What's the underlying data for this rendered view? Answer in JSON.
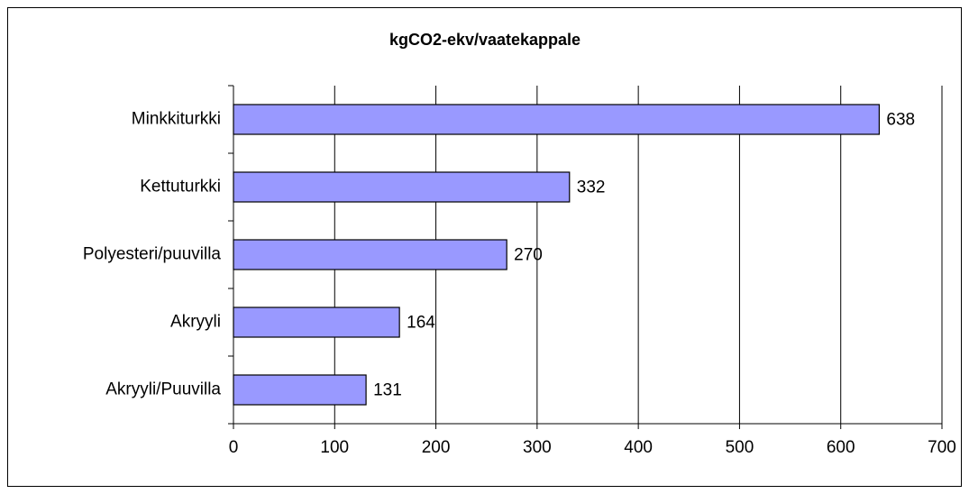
{
  "chart_data": {
    "type": "bar",
    "orientation": "horizontal",
    "title": "kgCO2-ekv/vaatekappale",
    "categories": [
      "Minkkiturkki",
      "Kettuturkki",
      "Polyesteri/puuvilla",
      "Akryyli",
      "Akryyli/Puuvilla"
    ],
    "values": [
      638,
      332,
      270,
      164,
      131
    ],
    "color": "#9999ff",
    "xlim": [
      0,
      700
    ],
    "xticks": [
      0,
      100,
      200,
      300,
      400,
      500,
      600,
      700
    ],
    "grid": true
  }
}
